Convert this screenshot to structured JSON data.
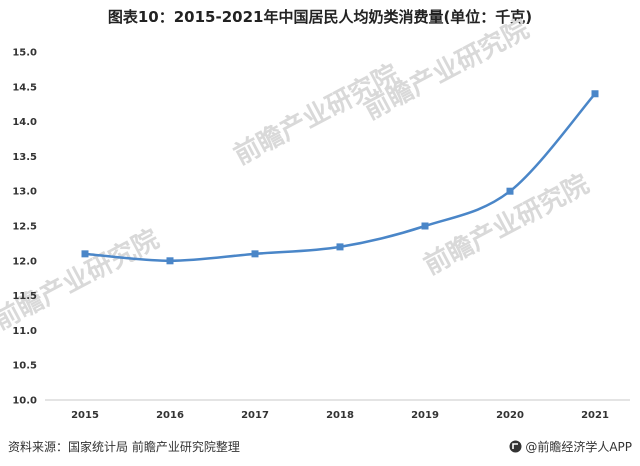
{
  "title": "图表10：2015-2021年中国居民人均奶类消费量(单位：千克)",
  "source": "资料来源：国家统计局 前瞻产业研究院整理",
  "brand": "@前瞻经济学人APP",
  "watermark": "前瞻产业研究院",
  "colors": {
    "line": "#4a86c8",
    "marker": "#4a86c8",
    "axis": "#c9c9c9"
  },
  "chart_data": {
    "type": "line",
    "categories": [
      "2015",
      "2016",
      "2017",
      "2018",
      "2019",
      "2020",
      "2021"
    ],
    "series": [
      {
        "values": [
          12.1,
          12.0,
          12.1,
          12.2,
          12.5,
          13.0,
          14.4
        ]
      }
    ],
    "yticks": [
      "10.0",
      "10.5",
      "11.0",
      "11.5",
      "12.0",
      "12.5",
      "13.0",
      "13.5",
      "14.0",
      "14.5",
      "15.0"
    ],
    "ylim": [
      10.0,
      15.0
    ],
    "smooth": true,
    "marker": "square",
    "grid": false,
    "legend": "none",
    "xlabel": "",
    "ylabel": ""
  }
}
